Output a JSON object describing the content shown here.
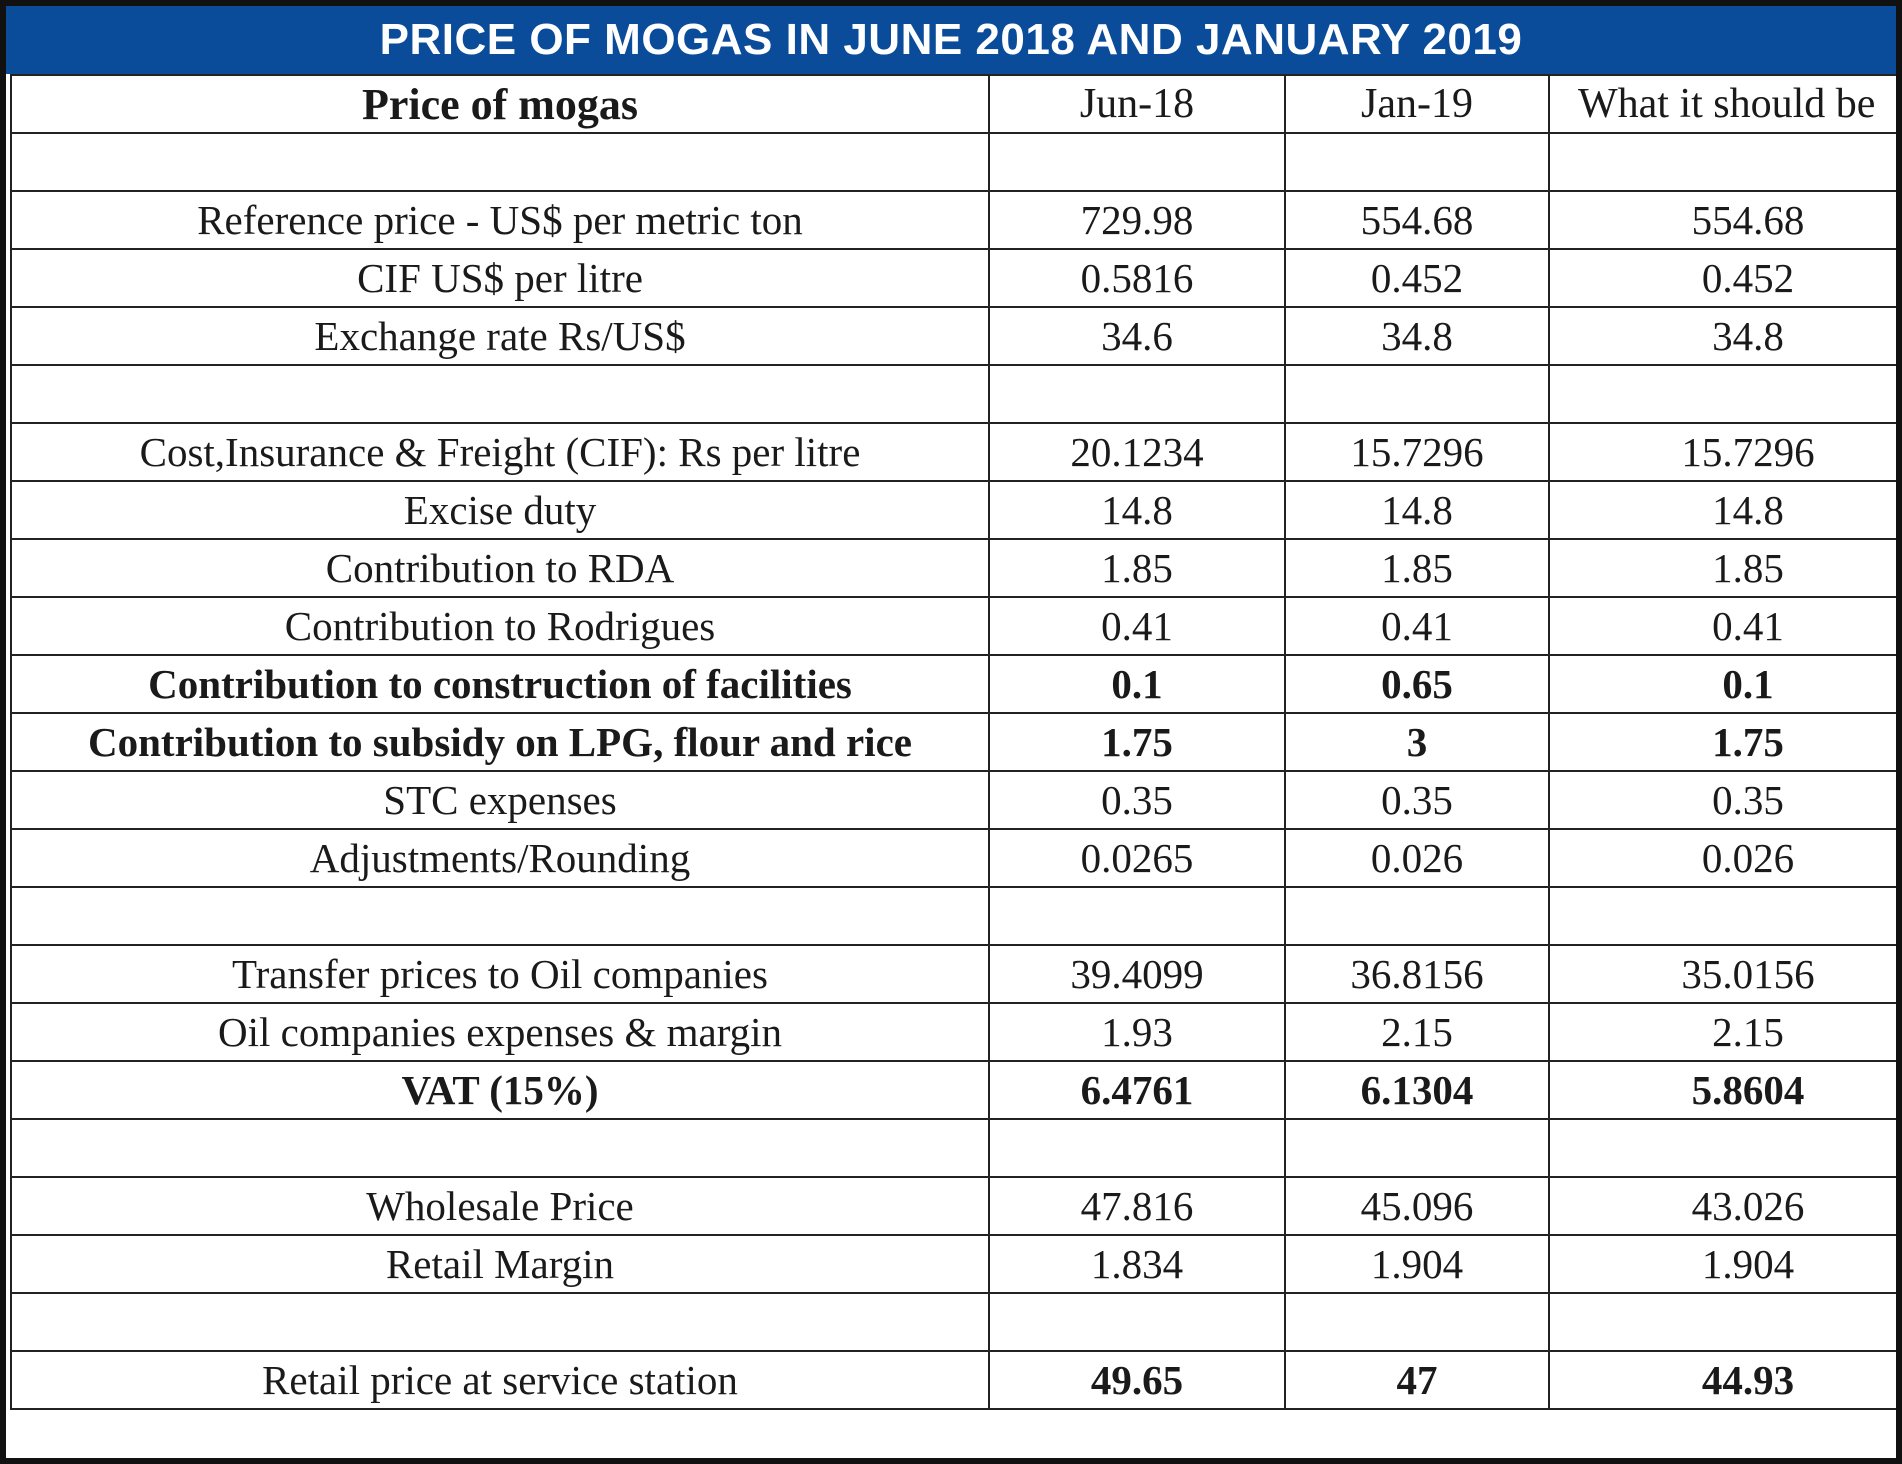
{
  "title": "PRICE OF MOGAS IN JUNE 2018 AND JANUARY 2019",
  "table": {
    "headers": [
      "Price of mogas",
      "Jun-18",
      "Jan-19",
      "What it should be"
    ],
    "rows": [
      {
        "label": "",
        "jun18": "",
        "jan19": "",
        "should_be": "",
        "bold": false
      },
      {
        "label": "Reference price - US$ per metric ton",
        "jun18": "729.98",
        "jan19": "554.68",
        "should_be": "554.68",
        "bold": false
      },
      {
        "label": "CIF US$ per litre",
        "jun18": "0.5816",
        "jan19": "0.452",
        "should_be": "0.452",
        "bold": false
      },
      {
        "label": "Exchange rate Rs/US$",
        "jun18": "34.6",
        "jan19": "34.8",
        "should_be": "34.8",
        "bold": false
      },
      {
        "label": "",
        "jun18": "",
        "jan19": "",
        "should_be": "",
        "bold": false
      },
      {
        "label": "Cost,Insurance & Freight (CIF): Rs per litre",
        "jun18": "20.1234",
        "jan19": "15.7296",
        "should_be": "15.7296",
        "bold": false
      },
      {
        "label": "Excise duty",
        "jun18": "14.8",
        "jan19": "14.8",
        "should_be": "14.8",
        "bold": false
      },
      {
        "label": "Contribution to RDA",
        "jun18": "1.85",
        "jan19": "1.85",
        "should_be": "1.85",
        "bold": false
      },
      {
        "label": "Contribution to Rodrigues",
        "jun18": "0.41",
        "jan19": "0.41",
        "should_be": "0.41",
        "bold": false
      },
      {
        "label": "Contribution to construction of facilities",
        "jun18": "0.1",
        "jan19": "0.65",
        "should_be": "0.1",
        "bold": true
      },
      {
        "label": "Contribution to subsidy on LPG, flour and rice",
        "jun18": "1.75",
        "jan19": "3",
        "should_be": "1.75",
        "bold": true
      },
      {
        "label": "STC expenses",
        "jun18": "0.35",
        "jan19": "0.35",
        "should_be": "0.35",
        "bold": false
      },
      {
        "label": "Adjustments/Rounding",
        "jun18": "0.0265",
        "jan19": "0.026",
        "should_be": "0.026",
        "bold": false
      },
      {
        "label": "",
        "jun18": "",
        "jan19": "",
        "should_be": "",
        "bold": false
      },
      {
        "label": "Transfer prices to Oil companies",
        "jun18": "39.4099",
        "jan19": "36.8156",
        "should_be": "35.0156",
        "bold": false
      },
      {
        "label": "Oil companies expenses & margin",
        "jun18": "1.93",
        "jan19": "2.15",
        "should_be": "2.15",
        "bold": false
      },
      {
        "label": "VAT (15%)",
        "jun18": "6.4761",
        "jan19": "6.1304",
        "should_be": "5.8604",
        "bold": true
      },
      {
        "label": "",
        "jun18": "",
        "jan19": "",
        "should_be": "",
        "bold": false
      },
      {
        "label": "Wholesale Price",
        "jun18": "47.816",
        "jan19": "45.096",
        "should_be": "43.026",
        "bold": false
      },
      {
        "label": "Retail Margin",
        "jun18": "1.834",
        "jan19": "1.904",
        "should_be": "1.904",
        "bold": false
      },
      {
        "label": "",
        "jun18": "",
        "jan19": "",
        "should_be": "",
        "bold": false
      },
      {
        "label": "Retail price  at service station",
        "jun18": "49.65",
        "jan19": "47",
        "should_be": "44.93",
        "bold": true,
        "bold_values_only": true
      }
    ]
  }
}
